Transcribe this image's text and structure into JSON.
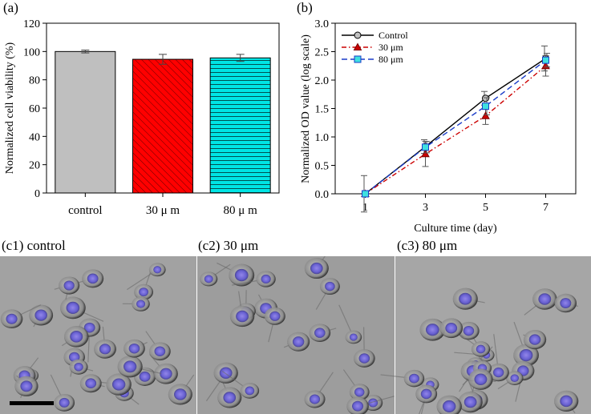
{
  "panels": {
    "a_label": "(a)",
    "b_label": "(b)",
    "c1_label": "(c1) control",
    "c2_label": "(c2) 30 μm",
    "c3_label": "(c3) 80 μm"
  },
  "chart_data": [
    {
      "type": "bar",
      "panel": "(a)",
      "ylabel": "Normalized cell viability (%)",
      "xlabel": "",
      "ylim": [
        0,
        120
      ],
      "yticks": [
        "0",
        "20",
        "40",
        "60",
        "80",
        "100",
        "120"
      ],
      "categories": [
        "control",
        "30 μ m",
        "80 μ m"
      ],
      "values": [
        100,
        94.5,
        95.5
      ],
      "errors": [
        1,
        3.5,
        2.5
      ],
      "colors": [
        "#bfbfbf",
        "#ff0000",
        "#00e5e5"
      ],
      "patterns": [
        "none",
        "diagonal",
        "horizontal"
      ]
    },
    {
      "type": "line",
      "panel": "(b)",
      "xlabel": "Culture time (day)",
      "ylabel": "Normalized OD value (log scale)",
      "x": [
        1,
        3,
        5,
        7
      ],
      "xticks": [
        "1",
        "3",
        "5",
        "7"
      ],
      "ylim": [
        0,
        3.0
      ],
      "yticks": [
        "0.0",
        "0.5",
        "1.0",
        "1.5",
        "2.0",
        "2.5",
        "3.0"
      ],
      "legend_position": "top-left",
      "series": [
        {
          "name": "Control",
          "values": [
            0,
            0.83,
            1.68,
            2.38
          ],
          "errors": [
            0.32,
            0.12,
            0.12,
            0.22
          ],
          "color": "#000000",
          "marker": "circle",
          "dash": "solid"
        },
        {
          "name": "30 μm",
          "values": [
            0,
            0.7,
            1.37,
            2.25
          ],
          "errors": [
            0,
            0.22,
            0.15,
            0.18
          ],
          "color": "#cc0000",
          "marker": "triangle",
          "dash": "dashdot"
        },
        {
          "name": "80 μm",
          "values": [
            0,
            0.82,
            1.54,
            2.35
          ],
          "errors": [
            0,
            0.1,
            0.15,
            0.12
          ],
          "color": "#1a3cc8",
          "marker": "square",
          "dash": "dash"
        }
      ]
    }
  ]
}
